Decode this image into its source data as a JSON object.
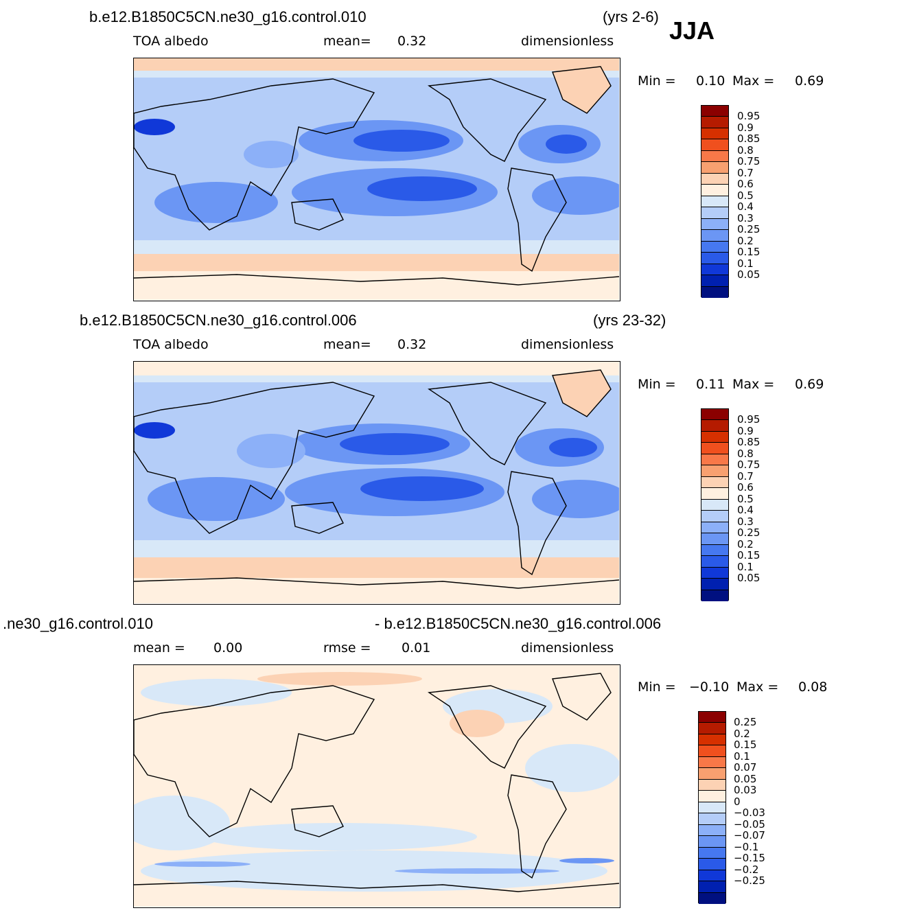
{
  "season": "JJA",
  "panels": [
    {
      "case_left": "b.e12.B1850C5CN.ne30_g16.control.010",
      "case_right": "(yrs 2-6)",
      "sub_left": "TOA  albedo",
      "sub_mid_label": "mean=",
      "sub_mid_value": "0.32",
      "sub_right": "dimensionless",
      "min_label": "Min =",
      "min_value": "0.10",
      "max_label": "Max =",
      "max_value": "0.69",
      "colorbar_colors": [
        "#8b0000",
        "#b51b00",
        "#d63000",
        "#f0501e",
        "#f87848",
        "#f8a070",
        "#fcd2b4",
        "#fff0e0",
        "#d8e8f8",
        "#b4cdf8",
        "#8cb0f8",
        "#6b96f4",
        "#4678f0",
        "#2a5ae8",
        "#1038d8",
        "#0020b0",
        "#001080"
      ],
      "colorbar_labels": [
        "0.95",
        "0.9",
        "0.85",
        "0.8",
        "0.75",
        "0.7",
        "0.6",
        "0.5",
        "0.4",
        "0.3",
        "0.25",
        "0.2",
        "0.15",
        "0.1",
        "0.05"
      ]
    },
    {
      "case_left": "b.e12.B1850C5CN.ne30_g16.control.006",
      "case_right": "(yrs 23-32)",
      "sub_left": "TOA  albedo",
      "sub_mid_label": "mean=",
      "sub_mid_value": "0.32",
      "sub_right": "dimensionless",
      "min_label": "Min =",
      "min_value": "0.11",
      "max_label": "Max =",
      "max_value": "0.69",
      "colorbar_colors": [
        "#8b0000",
        "#b51b00",
        "#d63000",
        "#f0501e",
        "#f87848",
        "#f8a070",
        "#fcd2b4",
        "#fff0e0",
        "#d8e8f8",
        "#b4cdf8",
        "#8cb0f8",
        "#6b96f4",
        "#4678f0",
        "#2a5ae8",
        "#1038d8",
        "#0020b0",
        "#001080"
      ],
      "colorbar_labels": [
        "0.95",
        "0.9",
        "0.85",
        "0.8",
        "0.75",
        "0.7",
        "0.6",
        "0.5",
        "0.4",
        "0.3",
        "0.25",
        "0.2",
        "0.15",
        "0.1",
        "0.05"
      ]
    },
    {
      "case_left": ".ne30_g16.control.010",
      "case_right": "- b.e12.B1850C5CN.ne30_g16.control.006",
      "sub_left_label": "mean =",
      "sub_left_value": "0.00",
      "sub_mid_label": "rmse =",
      "sub_mid_value": "0.01",
      "sub_right": "dimensionless",
      "min_label": "Min =",
      "min_value": "−0.10",
      "max_label": "Max =",
      "max_value": "0.08",
      "colorbar_colors": [
        "#8b0000",
        "#b51b00",
        "#d63000",
        "#f0501e",
        "#f87848",
        "#f8a070",
        "#fcd2b4",
        "#fff0e0",
        "#d8e8f8",
        "#b4cdf8",
        "#8cb0f8",
        "#6b96f4",
        "#4678f0",
        "#2a5ae8",
        "#1038d8",
        "#0020b0",
        "#001080"
      ],
      "colorbar_labels": [
        "0.25",
        "0.2",
        "0.15",
        "0.1",
        "0.07",
        "0.05",
        "0.03",
        "0",
        "−0.03",
        "−0.05",
        "−0.07",
        "−0.1",
        "−0.15",
        "−0.2",
        "−0.25"
      ]
    }
  ]
}
